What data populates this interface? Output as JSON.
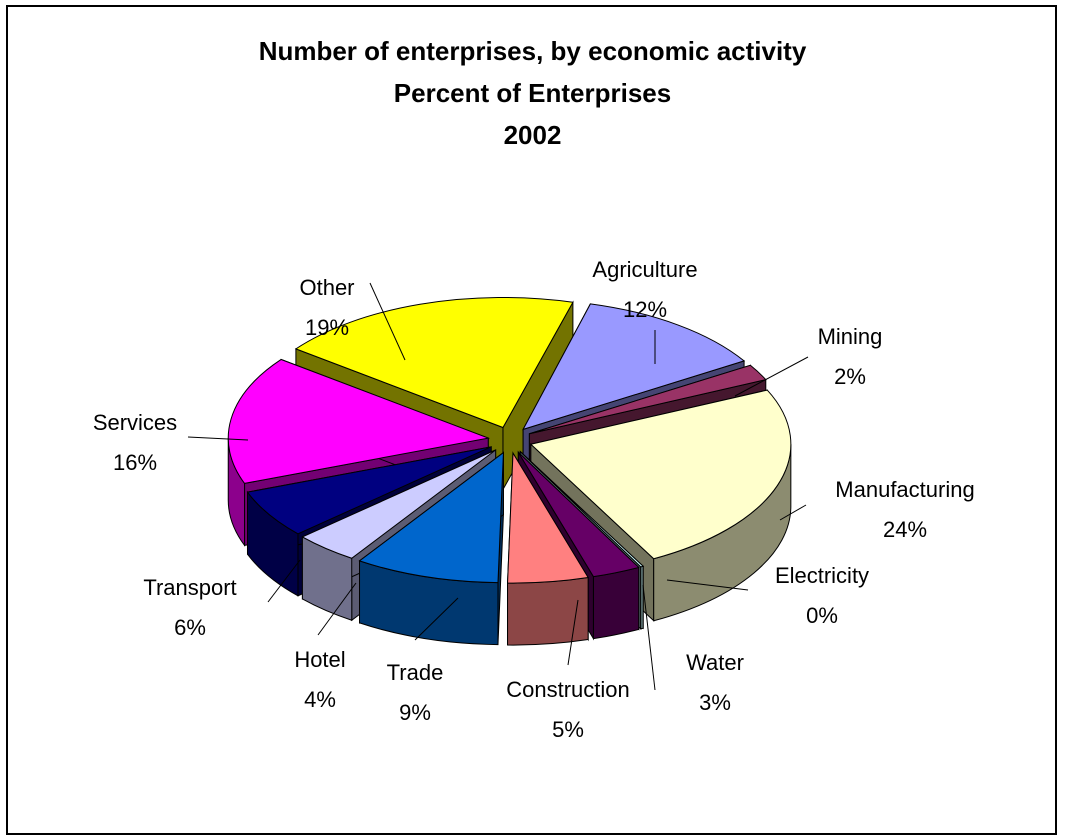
{
  "chart_data": {
    "type": "pie",
    "title": "Number of enterprises, by economic activity",
    "subtitle": "Percent of Enterprises",
    "year": "2002",
    "style": "3d-exploded",
    "legend": "none",
    "slices": [
      {
        "label": "Agriculture",
        "value": 12,
        "value_label": "12%",
        "color": "#9999ff"
      },
      {
        "label": "Mining",
        "value": 2,
        "value_label": "2%",
        "color": "#993366"
      },
      {
        "label": "Manufacturing",
        "value": 24,
        "value_label": "24%",
        "color": "#ffffcc"
      },
      {
        "label": "Electricity",
        "value": 0,
        "value_label": "0%",
        "color": "#ccffff"
      },
      {
        "label": "Water",
        "value": 3,
        "value_label": "3%",
        "color": "#660066"
      },
      {
        "label": "Construction",
        "value": 5,
        "value_label": "5%",
        "color": "#ff8080"
      },
      {
        "label": "Trade",
        "value": 9,
        "value_label": "9%",
        "color": "#0066cc"
      },
      {
        "label": "Hotel",
        "value": 4,
        "value_label": "4%",
        "color": "#ccccff"
      },
      {
        "label": "Transport",
        "value": 6,
        "value_label": "6%",
        "color": "#000080"
      },
      {
        "label": "Services",
        "value": 16,
        "value_label": "16%",
        "color": "#ff00ff"
      },
      {
        "label": "Other",
        "value": 19,
        "value_label": "19%",
        "color": "#ffff00"
      }
    ]
  }
}
